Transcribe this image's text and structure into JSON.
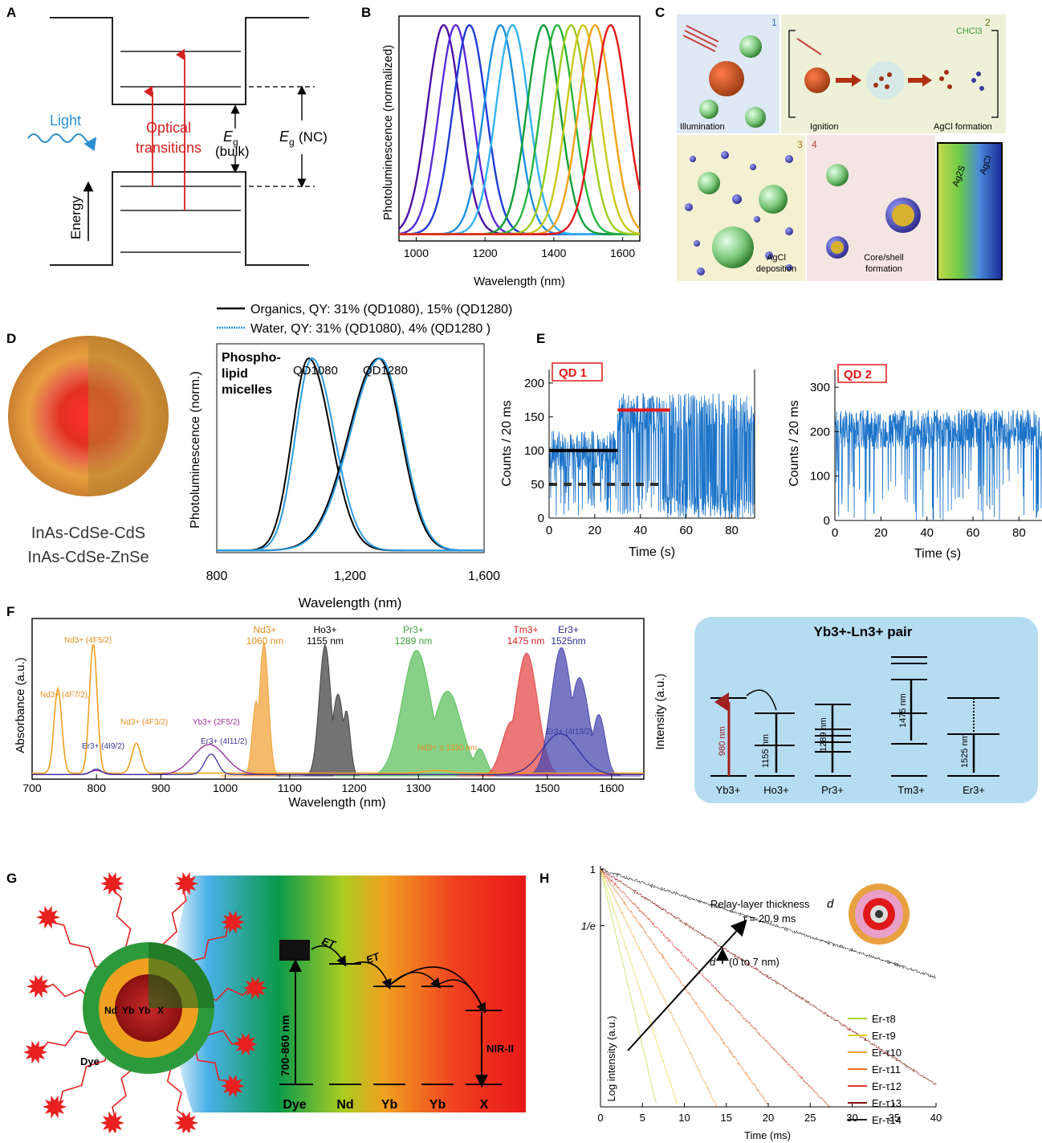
{
  "panels": {
    "A": {
      "label": "A",
      "light": "Light",
      "optical": [
        "Optical",
        "transitions"
      ],
      "eg_bulk": [
        "E",
        "g",
        "(bulk)"
      ],
      "eg_nc": [
        "E",
        "g",
        "(NC)"
      ],
      "energy": "Energy"
    },
    "B": {
      "label": "B",
      "ylabel": "Photoluminescence (normalized)",
      "xlabel": "Wavelength (nm)",
      "xticks": [
        "1000",
        "1200",
        "1400",
        "1600"
      ]
    },
    "C": {
      "label": "C",
      "steps": [
        "1",
        "2",
        "3",
        "4"
      ],
      "illumination": "Illumination",
      "ignition": "Ignition",
      "agcl_formation": "AgCl formation",
      "chcl3": "CHCl3",
      "agcl_deposition": [
        "AgCl",
        "deposition"
      ],
      "coreshell": [
        "Core/shell",
        "formation"
      ],
      "ag2s": "Ag2S",
      "agcl": "AgCl"
    },
    "D": {
      "label": "D",
      "legend1": "Organics, QY: 31% (QD1080), 15% (QD1280)",
      "legend2": "Water, QY: 31% (QD1080), 4% (QD1280 )",
      "struct1": "InAs-CdSe-CdS",
      "struct2": "InAs-CdSe-ZnSe",
      "inset": [
        "Phospho-",
        "lipid",
        "micelles"
      ],
      "qd1080": "QD1080",
      "qd1280": "QD1280",
      "ylabel": "Photoluminescence (norm.)",
      "xlabel": "Wavelength (nm)",
      "xticks": [
        "800",
        "1,200",
        "1,600"
      ]
    },
    "E": {
      "label": "E",
      "qd1": "QD 1",
      "qd2": "QD 2",
      "ylabel": "Counts / 20 ms",
      "xlabel": "Time (s)",
      "yticks1": [
        "0",
        "50",
        "100",
        "150",
        "200"
      ],
      "yticks2": [
        "0",
        "100",
        "200",
        "300"
      ],
      "xticks": [
        "0",
        "20",
        "40",
        "60",
        "80"
      ]
    },
    "F": {
      "label": "F",
      "ylabel": "Absorbance (a.u.)",
      "ylabel2": "Intensity (a.u.)",
      "xlabel": "Wavelength (nm)",
      "xticks": [
        "700",
        "800",
        "900",
        "1000",
        "1100",
        "1200",
        "1300",
        "1400",
        "1500",
        "1600"
      ],
      "peaks": {
        "nd": [
          "Nd3+",
          "1060 nm"
        ],
        "ho": [
          "Ho3+",
          "1155 nm"
        ],
        "pr": [
          "Pr3+",
          "1289 nm"
        ],
        "tm": [
          "Tm3+",
          "1475 nm"
        ],
        "er": [
          "Er3+",
          "1525nm"
        ]
      },
      "abs_labels": [
        "Nd3+ (4F7/2)",
        "Nd3+ (4F5/2)",
        "Nd3+ (4F3/2)",
        "Er3+ (4I9/2)",
        "Yb3+ (2F5/2)",
        "Er3+ (4I11/2)",
        "Er3+ (4I13/2)",
        "Nd3+ ≥ 1330 nm"
      ],
      "pair_title": "Yb3+-Ln3+ pair",
      "ions": [
        "Yb3+",
        "Ho3+",
        "Pr3+",
        "Tm3+",
        "Er3+"
      ],
      "arrows": [
        "980 nm",
        "1155 nm",
        "1289 nm",
        "1475 nm",
        "1525 nm"
      ]
    },
    "G": {
      "label": "G",
      "dye": "Dye",
      "core": [
        "Nd",
        "Yb",
        "Yb",
        "X"
      ],
      "et": "ET",
      "range": "700-860 nm",
      "nir": "NIR-II",
      "levels": [
        "Dye",
        "Nd",
        "Yb",
        "Yb",
        "X"
      ]
    },
    "H": {
      "label": "H",
      "ylabel": "Log intensity (a.u.)",
      "xlabel": "Time (ms)",
      "yticks": [
        "1",
        "1/e"
      ],
      "xticks": [
        "0",
        "5",
        "10",
        "15",
        "20",
        "25",
        "30",
        "35",
        "40"
      ],
      "relay": "Relay-layer thickness",
      "tau": "τ = 20.9 ms",
      "darrow": "(0 to 7 nm)",
      "d": "d"
    }
  },
  "chart_data": [
    {
      "type": "line",
      "panel": "B",
      "xlabel": "Wavelength (nm)",
      "ylabel": "Photoluminescence (normalized)",
      "xlim": [
        950,
        1650
      ],
      "ylim": [
        0,
        1
      ],
      "series": [
        {
          "peak": 1080,
          "color": "#4b0fa0"
        },
        {
          "peak": 1115,
          "color": "#5a2ad8"
        },
        {
          "peak": 1155,
          "color": "#1f3bd6"
        },
        {
          "peak": 1245,
          "color": "#1d8fe0"
        },
        {
          "peak": 1280,
          "color": "#35b3ee"
        },
        {
          "peak": 1370,
          "color": "#109d35"
        },
        {
          "peak": 1410,
          "color": "#28b43d"
        },
        {
          "peak": 1450,
          "color": "#9ccc20"
        },
        {
          "peak": 1485,
          "color": "#c8c81c"
        },
        {
          "peak": 1520,
          "color": "#f0a11a"
        },
        {
          "peak": 1565,
          "color": "#e41818"
        }
      ]
    },
    {
      "type": "line",
      "panel": "D",
      "xlabel": "Wavelength (nm)",
      "ylabel": "Photoluminescence (norm.)",
      "xlim": [
        800,
        1600
      ],
      "ylim": [
        0,
        1
      ],
      "series": [
        {
          "name": "Organics",
          "peaks": [
            1075,
            1285
          ],
          "color": "#000000"
        },
        {
          "name": "Water",
          "peaks": [
            1085,
            1290
          ],
          "color": "#2a9ae0"
        }
      ]
    },
    {
      "type": "line",
      "panel": "E-QD1",
      "xlabel": "Time (s)",
      "ylabel": "Counts / 20 ms",
      "xlim": [
        0,
        90
      ],
      "ylim": [
        0,
        220
      ],
      "levels": [
        {
          "x": [
            0,
            30
          ],
          "y": 100,
          "color": "#000000"
        },
        {
          "x": [
            0,
            50
          ],
          "y": 50,
          "style": "dashed"
        },
        {
          "x": [
            30,
            53
          ],
          "y": 160,
          "color": "#e41818"
        }
      ]
    },
    {
      "type": "line",
      "panel": "E-QD2",
      "xlabel": "Time (s)",
      "ylabel": "Counts / 20 ms",
      "xlim": [
        0,
        90
      ],
      "ylim": [
        0,
        340
      ]
    },
    {
      "type": "area",
      "panel": "F",
      "xlabel": "Wavelength (nm)",
      "ylabel": "Absorbance (a.u.)",
      "xlim": [
        700,
        1650
      ],
      "emission_peaks": [
        {
          "ion": "Nd3+",
          "peak": 1060,
          "color": "#f2a33a"
        },
        {
          "ion": "Ho3+",
          "peak": 1155,
          "color": "#444444"
        },
        {
          "ion": "Pr3+",
          "peak": 1289,
          "color": "#5fc05f"
        },
        {
          "ion": "Tm3+",
          "peak": 1475,
          "color": "#e44a4a"
        },
        {
          "ion": "Er3+",
          "peak": 1525,
          "color": "#4a4ab0"
        }
      ]
    },
    {
      "type": "scatter",
      "panel": "H",
      "xlabel": "Time (ms)",
      "ylabel": "Log intensity (a.u.)",
      "xlim": [
        0,
        40
      ],
      "series": [
        {
          "name": "Er-τ8",
          "tau": 1.6,
          "color": "#a8d820"
        },
        {
          "name": "Er-τ9",
          "tau": 2.2,
          "color": "#e0d020"
        },
        {
          "name": "Er-τ10",
          "tau": 3.3,
          "color": "#f0a030"
        },
        {
          "name": "Er-τ11",
          "tau": 4.8,
          "color": "#e87020"
        },
        {
          "name": "Er-τ12",
          "tau": 6.5,
          "color": "#d83a2a"
        },
        {
          "name": "Er-τ13",
          "tau": 10.5,
          "color": "#8a1010"
        },
        {
          "name": "Er-τ14",
          "tau": 20.9,
          "color": "#222222"
        }
      ]
    }
  ]
}
